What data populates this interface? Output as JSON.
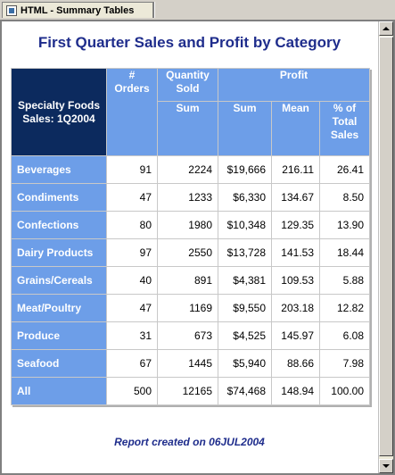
{
  "tab": {
    "title": "HTML - Summary Tables",
    "icon": "document-icon"
  },
  "title": "First Quarter Sales and Profit by Category",
  "table": {
    "stub_header": "Specialty Foods Sales: 1Q2004",
    "orders_header": "# Orders",
    "quantity_header": "Quantity Sold",
    "profit_header": "Profit",
    "sum_header": "Sum",
    "profit_sum_header": "Sum",
    "mean_header": "Mean",
    "pct_header": "% of Total Sales",
    "rows": [
      {
        "category": "Beverages",
        "orders": "91",
        "quantity": "2224",
        "profit_sum": "$19,666",
        "mean": "216.11",
        "pct": "26.41"
      },
      {
        "category": "Condiments",
        "orders": "47",
        "quantity": "1233",
        "profit_sum": "$6,330",
        "mean": "134.67",
        "pct": "8.50"
      },
      {
        "category": "Confections",
        "orders": "80",
        "quantity": "1980",
        "profit_sum": "$10,348",
        "mean": "129.35",
        "pct": "13.90"
      },
      {
        "category": "Dairy Products",
        "orders": "97",
        "quantity": "2550",
        "profit_sum": "$13,728",
        "mean": "141.53",
        "pct": "18.44"
      },
      {
        "category": "Grains/Cereals",
        "orders": "40",
        "quantity": "891",
        "profit_sum": "$4,381",
        "mean": "109.53",
        "pct": "5.88"
      },
      {
        "category": "Meat/Poultry",
        "orders": "47",
        "quantity": "1169",
        "profit_sum": "$9,550",
        "mean": "203.18",
        "pct": "12.82"
      },
      {
        "category": "Produce",
        "orders": "31",
        "quantity": "673",
        "profit_sum": "$4,525",
        "mean": "145.97",
        "pct": "6.08"
      },
      {
        "category": "Seafood",
        "orders": "67",
        "quantity": "1445",
        "profit_sum": "$5,940",
        "mean": "88.66",
        "pct": "7.98"
      },
      {
        "category": "All",
        "orders": "500",
        "quantity": "12165",
        "profit_sum": "$74,468",
        "mean": "148.94",
        "pct": "100.00"
      }
    ]
  },
  "report_note": "Report created on 06JUL2004",
  "colors": {
    "title": "#1f2d8c",
    "header_dark": "#0c2a5e",
    "header_light": "#6d9ee8"
  }
}
